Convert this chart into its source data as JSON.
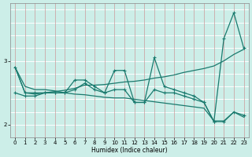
{
  "xlabel": "Humidex (Indice chaleur)",
  "x": [
    0,
    1,
    2,
    3,
    4,
    5,
    6,
    7,
    8,
    9,
    10,
    11,
    12,
    13,
    14,
    15,
    16,
    17,
    18,
    19,
    20,
    21,
    22,
    23
  ],
  "line_volatile": [
    2.9,
    2.5,
    2.5,
    2.5,
    2.5,
    2.5,
    2.7,
    2.7,
    2.6,
    2.5,
    2.85,
    2.85,
    2.35,
    2.35,
    3.05,
    2.6,
    2.55,
    2.5,
    2.45,
    2.35,
    2.05,
    3.35,
    3.75,
    3.2
  ],
  "line_lower_marked": [
    2.5,
    2.45,
    2.45,
    2.5,
    2.5,
    2.5,
    2.55,
    2.65,
    2.55,
    2.5,
    2.55,
    2.55,
    2.35,
    2.35,
    2.55,
    2.5,
    2.5,
    2.45,
    2.4,
    2.35,
    2.05,
    2.05,
    2.2,
    2.15
  ],
  "line_trend_up": [
    2.9,
    2.5,
    2.48,
    2.5,
    2.52,
    2.54,
    2.57,
    2.62,
    2.62,
    2.63,
    2.65,
    2.67,
    2.68,
    2.7,
    2.73,
    2.75,
    2.78,
    2.82,
    2.85,
    2.88,
    2.92,
    3.0,
    3.1,
    3.18
  ],
  "line_trend_down": [
    2.9,
    2.6,
    2.55,
    2.55,
    2.53,
    2.5,
    2.48,
    2.47,
    2.45,
    2.43,
    2.42,
    2.42,
    2.4,
    2.38,
    2.36,
    2.34,
    2.32,
    2.3,
    2.28,
    2.26,
    2.06,
    2.06,
    2.2,
    2.12
  ],
  "ylim": [
    1.8,
    3.9
  ],
  "xlim": [
    -0.5,
    23.5
  ],
  "yticks": [
    2,
    3
  ],
  "xticks": [
    0,
    1,
    2,
    3,
    4,
    5,
    6,
    7,
    8,
    9,
    10,
    11,
    12,
    13,
    14,
    15,
    16,
    17,
    18,
    19,
    20,
    21,
    22,
    23
  ],
  "line_color": "#1a7a6e",
  "bg_color": "#cceee8",
  "grid_color_h": "#aadddd",
  "grid_color_v": "#ddaaaa",
  "marker_size": 3.5,
  "lw": 0.9
}
